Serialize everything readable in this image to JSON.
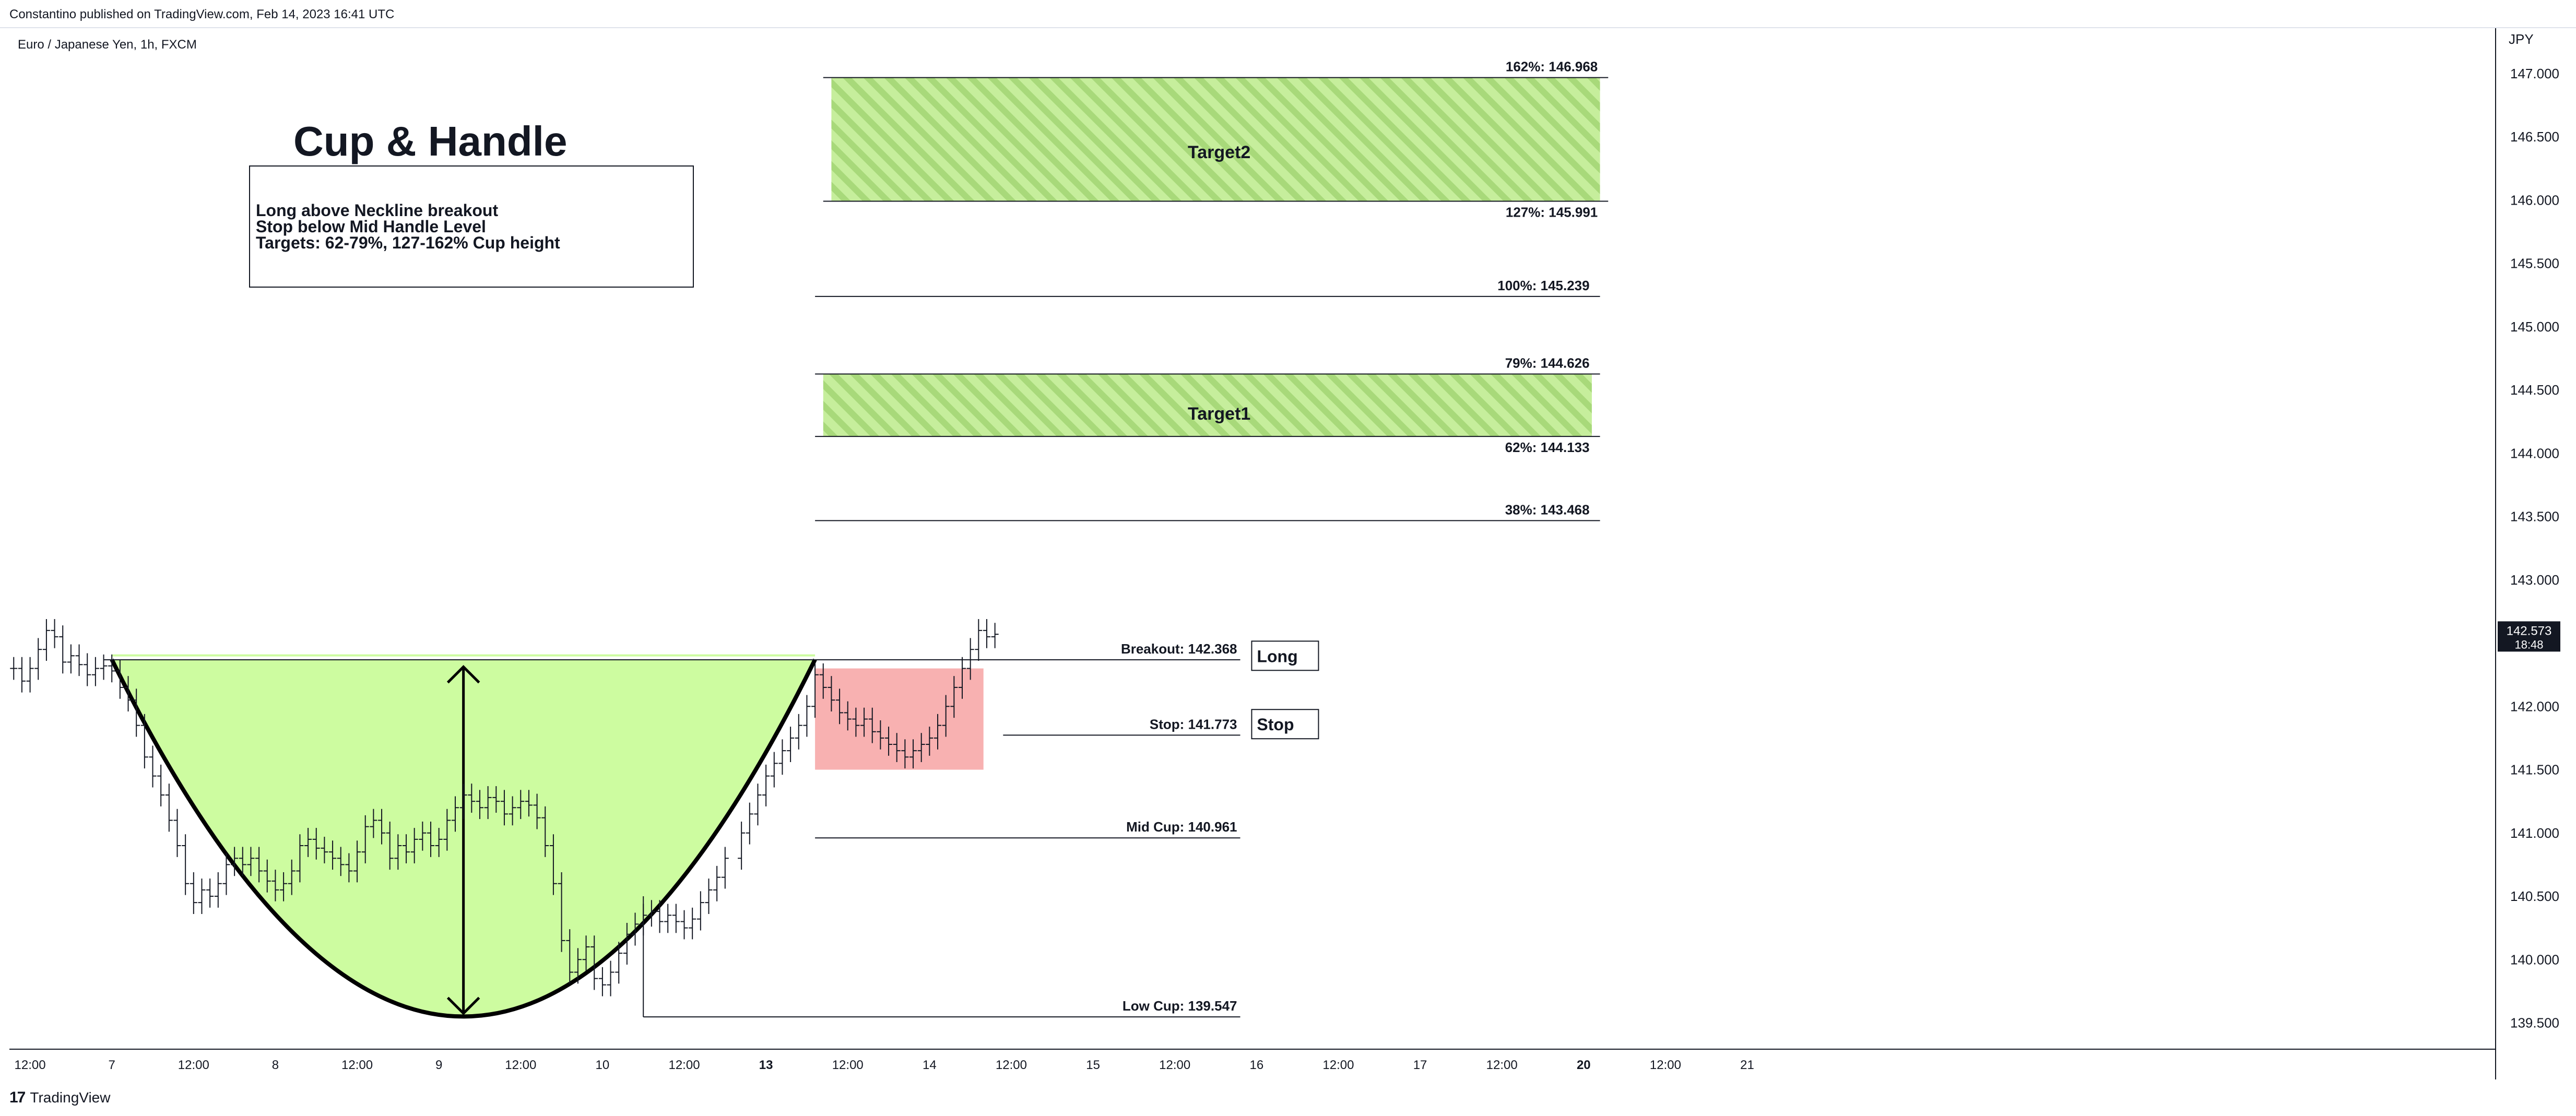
{
  "header": {
    "published": "Constantino published on TradingView.com, Feb 14, 2023 16:41 UTC",
    "symbol": "Euro / Japanese Yen, 1h, FXCM"
  },
  "footer": {
    "brand_mark": "17",
    "brand": "TradingView"
  },
  "chart_data": {
    "type": "candlestick",
    "title": "Cup & Handle",
    "currency": "JPY",
    "y_range": [
      139.3,
      147.35
    ],
    "y_ticks": [
      {
        "value": 147.0,
        "label": "147.000"
      },
      {
        "value": 146.5,
        "label": "146.500"
      },
      {
        "value": 146.0,
        "label": "146.000"
      },
      {
        "value": 145.5,
        "label": "145.500"
      },
      {
        "value": 145.0,
        "label": "145.000"
      },
      {
        "value": 144.5,
        "label": "144.500"
      },
      {
        "value": 144.0,
        "label": "144.000"
      },
      {
        "value": 143.5,
        "label": "143.500"
      },
      {
        "value": 143.0,
        "label": "143.000"
      },
      {
        "value": 142.0,
        "label": "142.000"
      },
      {
        "value": 141.5,
        "label": "141.500"
      },
      {
        "value": 141.0,
        "label": "141.000"
      },
      {
        "value": 140.5,
        "label": "140.500"
      },
      {
        "value": 140.0,
        "label": "140.000"
      },
      {
        "value": 139.5,
        "label": "139.500"
      }
    ],
    "x_range": [
      6.38,
      21.57
    ],
    "x_ticks": [
      {
        "day": 6.5,
        "label": "12:00",
        "bold": false
      },
      {
        "day": 7.0,
        "label": "7",
        "bold": false
      },
      {
        "day": 7.5,
        "label": "12:00",
        "bold": false
      },
      {
        "day": 8.0,
        "label": "8",
        "bold": false
      },
      {
        "day": 8.5,
        "label": "12:00",
        "bold": false
      },
      {
        "day": 9.0,
        "label": "9",
        "bold": false
      },
      {
        "day": 9.5,
        "label": "12:00",
        "bold": false
      },
      {
        "day": 10.0,
        "label": "10",
        "bold": false
      },
      {
        "day": 10.5,
        "label": "12:00",
        "bold": false
      },
      {
        "day": 11.0,
        "label": "13",
        "bold": true
      },
      {
        "day": 11.5,
        "label": "12:00",
        "bold": false
      },
      {
        "day": 12.0,
        "label": "14",
        "bold": false
      },
      {
        "day": 12.5,
        "label": "12:00",
        "bold": false
      },
      {
        "day": 13.0,
        "label": "15",
        "bold": false
      },
      {
        "day": 13.5,
        "label": "12:00",
        "bold": false
      },
      {
        "day": 14.0,
        "label": "16",
        "bold": false
      },
      {
        "day": 14.5,
        "label": "12:00",
        "bold": false
      },
      {
        "day": 15.0,
        "label": "17",
        "bold": false
      },
      {
        "day": 15.5,
        "label": "12:00",
        "bold": false
      },
      {
        "day": 16.0,
        "label": "20",
        "bold": true
      },
      {
        "day": 16.5,
        "label": "12:00",
        "bold": false
      },
      {
        "day": 17.0,
        "label": "21",
        "bold": false
      }
    ],
    "last_price": {
      "label": "142.573",
      "countdown": "18:48",
      "value": 142.573
    },
    "price_series": [
      [
        6.4,
        142.3
      ],
      [
        6.45,
        142.2
      ],
      [
        6.5,
        142.3
      ],
      [
        6.55,
        142.45
      ],
      [
        6.6,
        142.6
      ],
      [
        6.65,
        142.55
      ],
      [
        6.7,
        142.35
      ],
      [
        6.75,
        142.4
      ],
      [
        6.8,
        142.33
      ],
      [
        6.85,
        142.25
      ],
      [
        6.9,
        142.3
      ],
      [
        6.95,
        142.32
      ],
      [
        7.0,
        142.28
      ],
      [
        7.05,
        142.15
      ],
      [
        7.1,
        142.05
      ],
      [
        7.15,
        141.85
      ],
      [
        7.2,
        141.6
      ],
      [
        7.25,
        141.45
      ],
      [
        7.3,
        141.3
      ],
      [
        7.35,
        141.1
      ],
      [
        7.4,
        140.9
      ],
      [
        7.45,
        140.6
      ],
      [
        7.5,
        140.45
      ],
      [
        7.55,
        140.55
      ],
      [
        7.6,
        140.5
      ],
      [
        7.65,
        140.6
      ],
      [
        7.7,
        140.75
      ],
      [
        7.75,
        140.8
      ],
      [
        7.8,
        140.75
      ],
      [
        7.85,
        140.8
      ],
      [
        7.9,
        140.7
      ],
      [
        7.95,
        140.62
      ],
      [
        8.0,
        140.55
      ],
      [
        8.05,
        140.6
      ],
      [
        8.1,
        140.7
      ],
      [
        8.15,
        140.9
      ],
      [
        8.2,
        140.95
      ],
      [
        8.25,
        140.88
      ],
      [
        8.3,
        140.85
      ],
      [
        8.35,
        140.8
      ],
      [
        8.4,
        140.75
      ],
      [
        8.45,
        140.7
      ],
      [
        8.5,
        140.85
      ],
      [
        8.55,
        141.05
      ],
      [
        8.6,
        141.1
      ],
      [
        8.65,
        141.0
      ],
      [
        8.7,
        140.8
      ],
      [
        8.75,
        140.9
      ],
      [
        8.8,
        140.85
      ],
      [
        8.85,
        140.95
      ],
      [
        8.9,
        141.0
      ],
      [
        8.95,
        140.9
      ],
      [
        9.0,
        140.95
      ],
      [
        9.05,
        141.1
      ],
      [
        9.1,
        141.2
      ],
      [
        9.15,
        141.3
      ],
      [
        9.2,
        141.25
      ],
      [
        9.25,
        141.2
      ],
      [
        9.3,
        141.28
      ],
      [
        9.35,
        141.25
      ],
      [
        9.4,
        141.15
      ],
      [
        9.45,
        141.2
      ],
      [
        9.5,
        141.25
      ],
      [
        9.55,
        141.22
      ],
      [
        9.6,
        141.12
      ],
      [
        9.65,
        140.9
      ],
      [
        9.7,
        140.6
      ],
      [
        9.75,
        140.15
      ],
      [
        9.8,
        139.9
      ],
      [
        9.85,
        140.0
      ],
      [
        9.9,
        140.1
      ],
      [
        9.95,
        139.85
      ],
      [
        10.0,
        139.8
      ],
      [
        10.05,
        139.9
      ],
      [
        10.1,
        140.05
      ],
      [
        10.15,
        140.2
      ],
      [
        10.2,
        140.28
      ],
      [
        10.25,
        140.35
      ],
      [
        10.3,
        140.38
      ],
      [
        10.35,
        140.3
      ],
      [
        10.4,
        140.35
      ],
      [
        10.45,
        140.3
      ],
      [
        10.5,
        140.25
      ],
      [
        10.55,
        140.32
      ],
      [
        10.6,
        140.45
      ],
      [
        10.65,
        140.55
      ],
      [
        10.7,
        140.65
      ],
      [
        10.75,
        140.8
      ],
      [
        10.85,
        141.0
      ],
      [
        10.9,
        141.15
      ],
      [
        10.95,
        141.3
      ],
      [
        11.0,
        141.45
      ],
      [
        11.05,
        141.55
      ],
      [
        11.1,
        141.65
      ],
      [
        11.15,
        141.75
      ],
      [
        11.2,
        141.85
      ],
      [
        11.25,
        142.0
      ],
      [
        11.3,
        142.25
      ],
      [
        11.35,
        142.15
      ],
      [
        11.4,
        142.05
      ],
      [
        11.45,
        141.95
      ],
      [
        11.5,
        141.9
      ],
      [
        11.55,
        141.85
      ],
      [
        11.6,
        141.9
      ],
      [
        11.65,
        141.8
      ],
      [
        11.7,
        141.75
      ],
      [
        11.75,
        141.7
      ],
      [
        11.8,
        141.65
      ],
      [
        11.85,
        141.6
      ],
      [
        11.9,
        141.65
      ],
      [
        11.95,
        141.7
      ],
      [
        12.0,
        141.75
      ],
      [
        12.05,
        141.85
      ],
      [
        12.1,
        142.0
      ],
      [
        12.15,
        142.15
      ],
      [
        12.2,
        142.3
      ],
      [
        12.25,
        142.45
      ],
      [
        12.3,
        142.6
      ],
      [
        12.35,
        142.55
      ],
      [
        12.4,
        142.57
      ]
    ],
    "cup": {
      "left": [
        7.0,
        142.37
      ],
      "right": [
        11.3,
        142.37
      ],
      "bottom": [
        9.15,
        139.55
      ],
      "depth_arrow_day": 9.15
    },
    "zones": [
      {
        "name": "Target2",
        "from": 145.991,
        "to": 146.968,
        "start": 11.4,
        "end": 16.1,
        "color": "#b5e38a"
      },
      {
        "name": "Target1",
        "from": 144.133,
        "to": 144.626,
        "start": 11.35,
        "end": 16.05,
        "color": "#b5e38a"
      }
    ],
    "handle_box": {
      "from": 141.5,
      "to": 142.3,
      "start": 11.3,
      "end": 12.33,
      "color": "#f7a8a8"
    },
    "fib_levels": [
      {
        "label": "162%: 146.968",
        "value": 146.968,
        "start": 11.35,
        "end": 16.15
      },
      {
        "label": "127%: 145.991",
        "value": 145.991,
        "start": 11.35,
        "end": 16.15
      },
      {
        "label": "100%: 145.239",
        "value": 145.239,
        "start": 11.3,
        "end": 16.1
      },
      {
        "label": "79%: 144.626",
        "value": 144.626,
        "start": 11.3,
        "end": 16.1
      },
      {
        "label": "62%: 144.133",
        "value": 144.133,
        "start": 11.3,
        "end": 16.1
      },
      {
        "label": "38%: 143.468",
        "value": 143.468,
        "start": 11.3,
        "end": 16.1
      }
    ],
    "key_levels": [
      {
        "label": "Breakout: 142.368",
        "value": 142.368,
        "start": 6.95,
        "end": 13.9
      },
      {
        "label": "Stop: 141.773",
        "value": 141.773,
        "start": 12.45,
        "end": 13.9
      },
      {
        "label": "Mid Cup: 140.961",
        "value": 140.961,
        "start": 11.3,
        "end": 13.9
      },
      {
        "label": "Low Cup: 139.547",
        "value": 139.547,
        "start": 10.25,
        "end": 13.9
      }
    ],
    "trade_tags": [
      {
        "label": "Long",
        "value": 142.4
      },
      {
        "label": "Stop",
        "value": 141.86
      }
    ],
    "annotations": {
      "target2": "Target2",
      "target1": "Target1",
      "note_lines": [
        "Long above Neckline breakout",
        "Stop below Mid Handle Level",
        "Targets: 62-79%, 127-162% Cup height"
      ]
    }
  }
}
